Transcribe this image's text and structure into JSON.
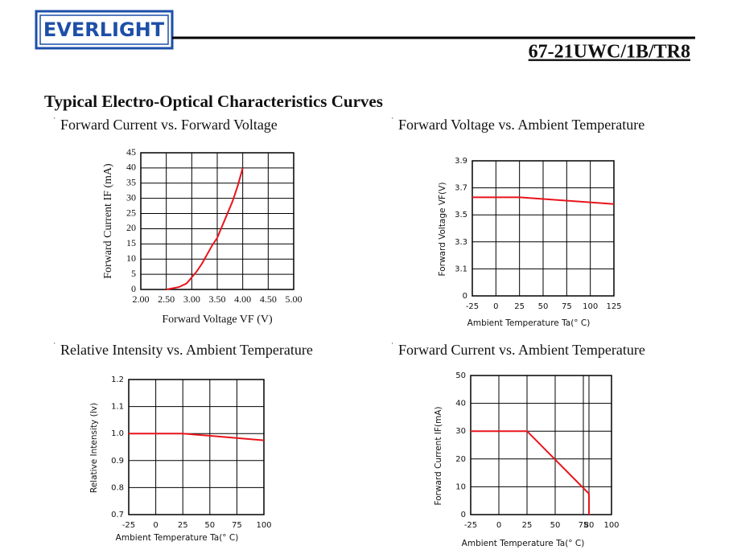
{
  "header": {
    "logo": "EVERLIGHT",
    "part_number": "67-21UWC/1B/TR8"
  },
  "section_title": "Typical Electro-Optical Characteristics Curves",
  "chart_data": [
    {
      "type": "line",
      "title": "Forward Current vs. Forward Voltage",
      "x_label": "Forward Voltage VF (V)",
      "y_label": "Forward Current IF (mA)",
      "x": [
        2.5,
        2.6,
        2.75,
        2.9,
        3.0,
        3.1,
        3.2,
        3.3,
        3.4,
        3.5,
        3.6,
        3.7,
        3.8,
        3.9,
        4.0
      ],
      "values": [
        0,
        0.3,
        0.8,
        2,
        4,
        6,
        8.5,
        11.5,
        14.5,
        17,
        21,
        25,
        29,
        34,
        40
      ],
      "color": "#e8141c",
      "grid": true,
      "xlim": [
        2,
        5
      ],
      "xticks": [
        {
          "value": 2,
          "label": "2.00"
        },
        {
          "value": 2.5,
          "label": "2.50"
        },
        {
          "value": 3,
          "label": "3.00"
        },
        {
          "value": 3.5,
          "label": "3.50"
        },
        {
          "value": 4,
          "label": "4.00"
        },
        {
          "value": 4.5,
          "label": "4.50"
        },
        {
          "value": 5,
          "label": "5.00"
        }
      ],
      "ylim": [
        0,
        45
      ],
      "yticks": [
        0,
        5,
        10,
        15,
        20,
        25,
        30,
        35,
        40,
        45
      ]
    },
    {
      "type": "line",
      "title": "Forward Voltage vs. Ambient Temperature",
      "x_label": "Ambient Temperature Ta(° C)",
      "y_label": "Forward Voltage VF(V)",
      "x": [
        -25,
        25,
        125
      ],
      "values": [
        3.63,
        3.63,
        3.58
      ],
      "color": "#e8141c",
      "grid": true,
      "y_axis_break": true,
      "xlim": [
        -25,
        125
      ],
      "xticks": [
        -25,
        0,
        25,
        50,
        75,
        100,
        125
      ],
      "ylim": [
        0,
        3.9
      ],
      "yticks": [
        0,
        3.1,
        3.3,
        3.5,
        3.7,
        3.9
      ]
    },
    {
      "type": "line",
      "title": "Relative Intensity vs. Ambient Temperature",
      "x_label": "Ambient Temperature Ta(° C)",
      "y_label": "Relative Intensity (Iv)",
      "x": [
        -25,
        25,
        100
      ],
      "values": [
        1,
        1,
        0.975
      ],
      "color": "#e8141c",
      "grid": true,
      "xlim": [
        -25,
        100
      ],
      "xticks": [
        -25,
        0,
        25,
        50,
        75,
        100
      ],
      "ylim": [
        0.7,
        1.2
      ],
      "yticks": [
        0.7,
        0.8,
        0.9,
        {
          "value": 1,
          "label": "1.0"
        },
        1.1,
        1.2
      ]
    },
    {
      "type": "line",
      "title": "Forward Current vs. Ambient Temperature",
      "x_label": "Ambient Temperature Ta(° C)",
      "y_label": "Forward Current IF(mA)",
      "x": [
        -25,
        25,
        80,
        80
      ],
      "values": [
        30,
        30,
        7.5,
        0
      ],
      "color": "#e8141c",
      "grid": true,
      "xlim": [
        -25,
        100
      ],
      "xticks": [
        -25,
        0,
        25,
        50,
        75,
        80,
        100
      ],
      "ylim": [
        0,
        50
      ],
      "yticks": [
        0,
        10,
        20,
        30,
        40,
        50
      ]
    }
  ]
}
